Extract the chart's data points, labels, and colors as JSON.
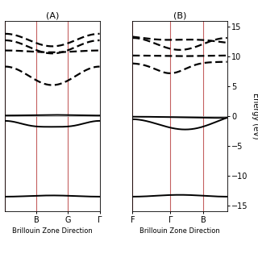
{
  "title_A": "(A)",
  "title_B": "(B)",
  "xlabel": "Brillouin Zone Direction",
  "ylabel": "Energy (eV)",
  "ylim": [
    -16,
    16
  ],
  "yticks_B": [
    -15,
    -10,
    -5,
    0,
    5,
    10,
    15
  ],
  "red_line_color": "#c46060",
  "band_color": "black",
  "zero_line_color": "#aaaaaa",
  "n_points": 300,
  "lw_solid": 1.4,
  "lw_dashed": 1.6,
  "lw_red": 0.8
}
